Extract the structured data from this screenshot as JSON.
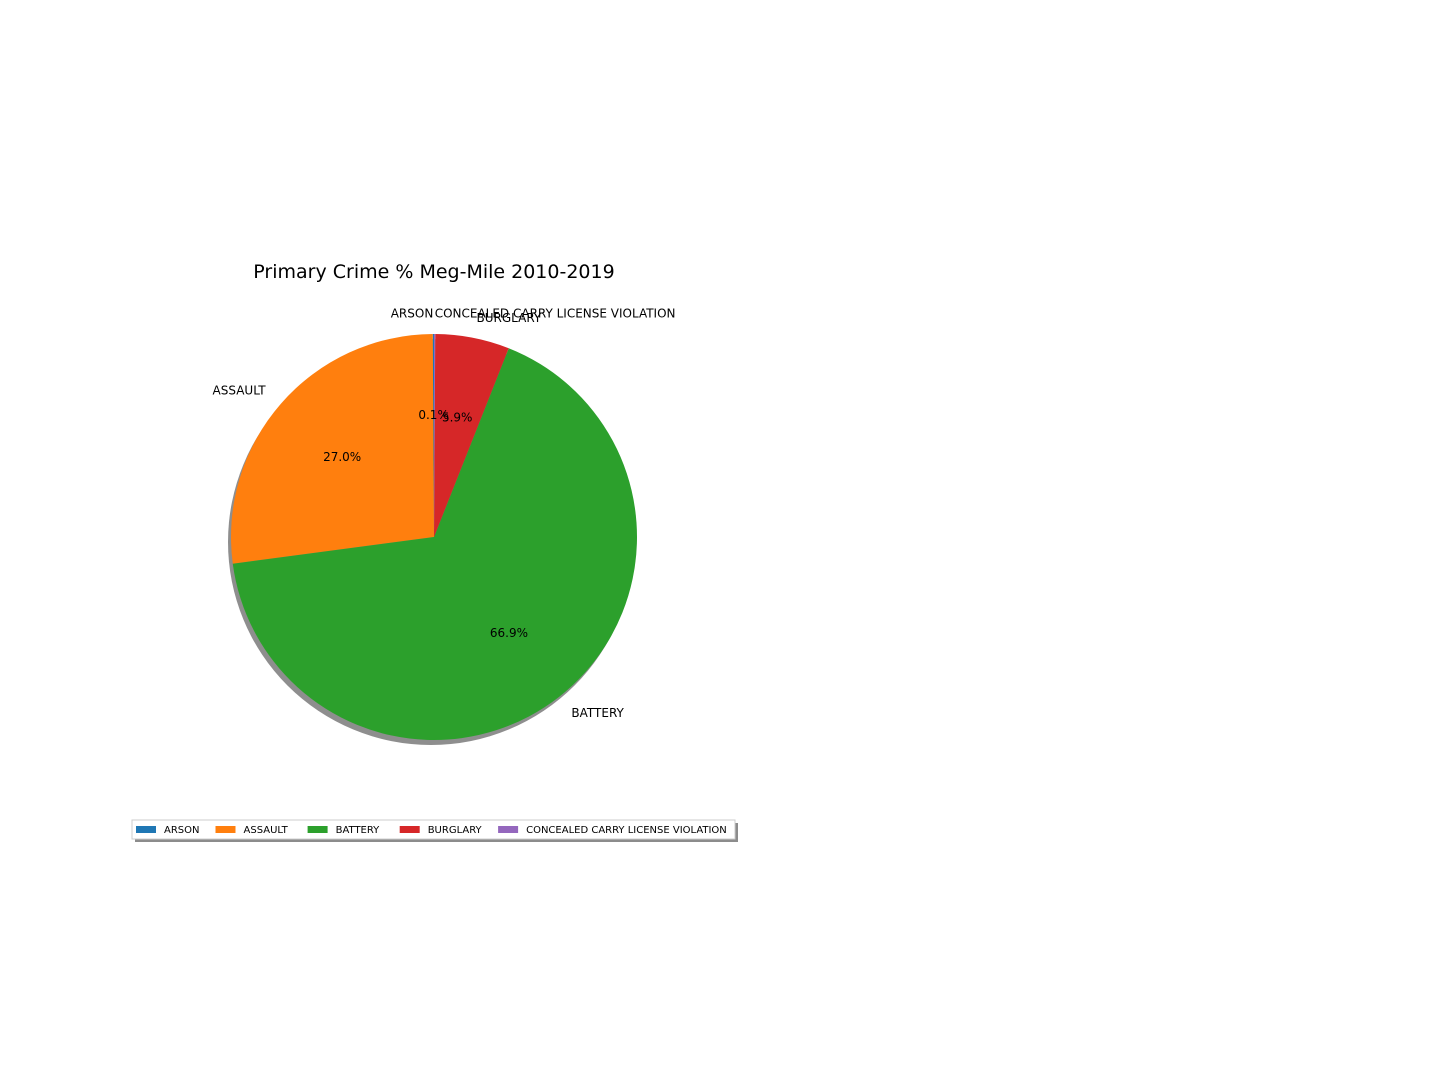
{
  "chart_data": {
    "type": "pie",
    "title": "Primary Crime % Meg-Mile 2010-2019",
    "categories": [
      "ARSON",
      "ASSAULT",
      "BATTERY",
      "BURGLARY",
      "CONCEALED CARRY LICENSE VIOLATION"
    ],
    "values": [
      0.1,
      27.0,
      66.9,
      5.9,
      0.1
    ],
    "percent_labels": [
      "0.1%",
      "27.0%",
      "66.9%",
      "5.9%",
      ""
    ],
    "colors": [
      "#1f77b4",
      "#ff7f0e",
      "#2ca02c",
      "#d62728",
      "#9467bd"
    ],
    "start_angle_deg": 90,
    "direction": "counterclockwise",
    "shadow": true,
    "legend": {
      "placement": "bottom-left",
      "columns": 5,
      "shadow": true
    }
  }
}
